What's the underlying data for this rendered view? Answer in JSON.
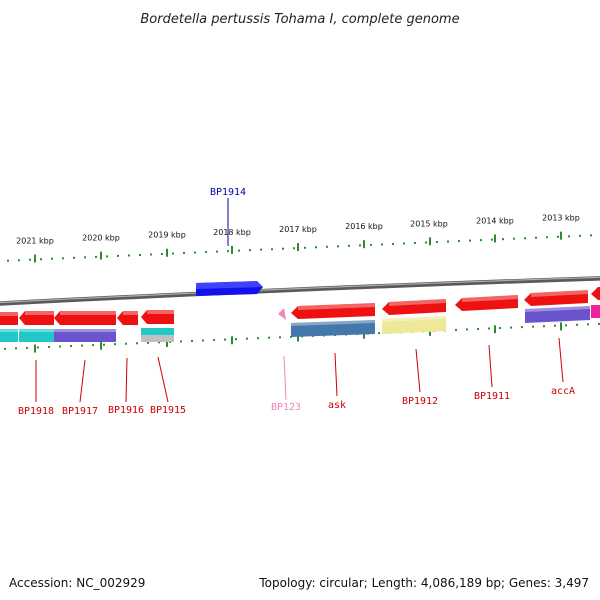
{
  "title": "Bordetella pertussis Tohama I, complete genome",
  "footer": {
    "accession": "Accession: NC_002929",
    "summary": "Topology: circular; Length: 4,086,189 bp; Genes: 3,497"
  },
  "colors": {
    "backbone": "#888888",
    "tick": "#2e8b2e",
    "forward_gene": "#ee1111",
    "reverse_gene": "#ee1111",
    "label_red": "#cc0000",
    "label_blue": "#0000aa",
    "label_pink": "#ee88bb"
  },
  "ticks": [
    {
      "label": "2021 kbp"
    },
    {
      "label": "2020 kbp"
    },
    {
      "label": "2019 kbp"
    },
    {
      "label": "2018 kbp"
    },
    {
      "label": "2017 kbp"
    },
    {
      "label": "2016 kbp"
    },
    {
      "label": "2015 kbp"
    },
    {
      "label": "2014 kbp"
    },
    {
      "label": "2013 kbp"
    }
  ],
  "gene_labels_top": [
    {
      "label": "BP1914",
      "color": "#0000aa"
    }
  ],
  "gene_labels_bottom": [
    {
      "label": "BP1918",
      "color": "#cc0000"
    },
    {
      "label": "BP1917",
      "color": "#cc0000"
    },
    {
      "label": "BP1916",
      "color": "#cc0000"
    },
    {
      "label": "BP1915",
      "color": "#cc0000"
    },
    {
      "label": "BP123",
      "color": "#ee88bb"
    },
    {
      "label": "ask",
      "color": "#cc0000"
    },
    {
      "label": "BP1912",
      "color": "#cc0000"
    },
    {
      "label": "BP1911",
      "color": "#cc0000"
    },
    {
      "label": "accA",
      "color": "#cc0000"
    }
  ]
}
